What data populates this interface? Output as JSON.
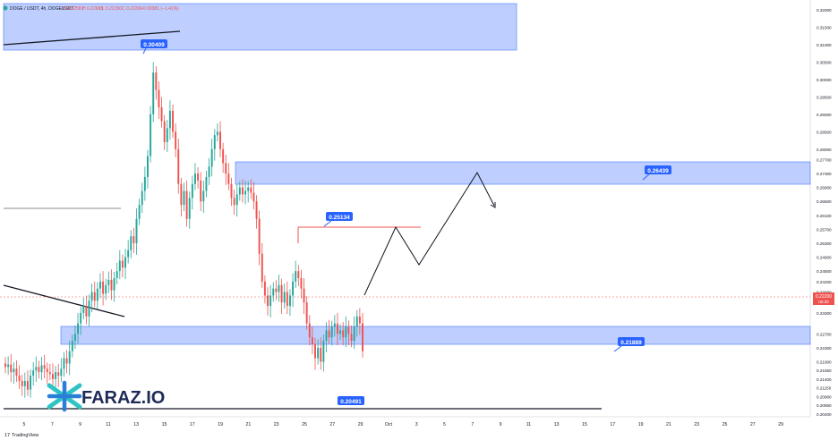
{
  "header": {
    "symbol": "DOGE / USDT, 4h, DOGEUSDT",
    "o": "O 0.22581",
    "h": "H 0.22688",
    "l": "L 0.22150",
    "c": "C 0.22200",
    "chg": "−0.00381 (−1.41%)"
  },
  "brand": {
    "logo_text": "FARAZ.IO",
    "footer": "TradingView"
  },
  "colors": {
    "up": "#26a69a",
    "down": "#ef5350",
    "zone_fill": "#b3c6ff",
    "zone_border": "#2962ff",
    "label_bg": "#2962ff"
  },
  "chart_data": {
    "type": "candlestick",
    "ylim": [
      0.2045,
      0.321
    ],
    "y_ticks": [
      "0.32000",
      "0.31500",
      "0.31000",
      "0.30500",
      "0.30000",
      "0.29500",
      "0.29000",
      "0.28500",
      "0.28000",
      "0.27700",
      "0.27300",
      "0.26900",
      "0.26500",
      "0.26100",
      "0.25700",
      "0.25300",
      "0.24900",
      "0.24500",
      "0.24200",
      "0.23900",
      "0.23600",
      "0.23300",
      "0.22700",
      "0.22300",
      "0.21900",
      "0.21650",
      "0.21400",
      "0.21150",
      "0.20900",
      "0.20650",
      "0.20400"
    ],
    "x_labels": [
      "5",
      "7",
      "9",
      "11",
      "13",
      "15",
      "17",
      "19",
      "21",
      "23",
      "25",
      "27",
      "29",
      "Oct",
      "3",
      "5",
      "7",
      "9",
      "11",
      "13",
      "15",
      "17",
      "19",
      "21",
      "23",
      "25",
      "27",
      "29"
    ],
    "last_price": "0.22200",
    "last_price_sub": "00:30",
    "levels": [
      "0.30409",
      "0.26439",
      "0.25134",
      "0.21889",
      "0.20491"
    ],
    "closes": [
      0.2175,
      0.2182,
      0.216,
      0.217,
      0.215,
      0.2135,
      0.212,
      0.2135,
      0.211,
      0.215,
      0.2165,
      0.2175,
      0.216,
      0.218,
      0.217,
      0.216,
      0.2155,
      0.214,
      0.216,
      0.215,
      0.217,
      0.22,
      0.2185,
      0.222,
      0.225,
      0.227,
      0.23,
      0.233,
      0.235,
      0.232,
      0.2365,
      0.239,
      0.2365,
      0.24,
      0.242,
      0.2385,
      0.241,
      0.2425,
      0.2395,
      0.243,
      0.245,
      0.248,
      0.246,
      0.249,
      0.251,
      0.255,
      0.253,
      0.26,
      0.264,
      0.268,
      0.272,
      0.278,
      0.29,
      0.302,
      0.297,
      0.292,
      0.288,
      0.282,
      0.286,
      0.291,
      0.285,
      0.28,
      0.27,
      0.264,
      0.268,
      0.26,
      0.266,
      0.27,
      0.273,
      0.271,
      0.265,
      0.268,
      0.272,
      0.275,
      0.28,
      0.284,
      0.285,
      0.28,
      0.276,
      0.273,
      0.27,
      0.266,
      0.264,
      0.267,
      0.269,
      0.267,
      0.268,
      0.269,
      0.2675,
      0.265,
      0.26,
      0.25,
      0.242,
      0.238,
      0.235,
      0.238,
      0.24,
      0.239,
      0.241,
      0.236,
      0.239,
      0.235,
      0.238,
      0.242,
      0.245,
      0.243,
      0.24,
      0.236,
      0.23,
      0.226,
      0.224,
      0.22,
      0.223,
      0.219,
      0.225,
      0.228,
      0.226,
      0.229,
      0.23,
      0.227,
      0.228,
      0.226,
      0.229,
      0.227,
      0.225,
      0.229,
      0.232,
      0.23,
      0.222
    ]
  }
}
